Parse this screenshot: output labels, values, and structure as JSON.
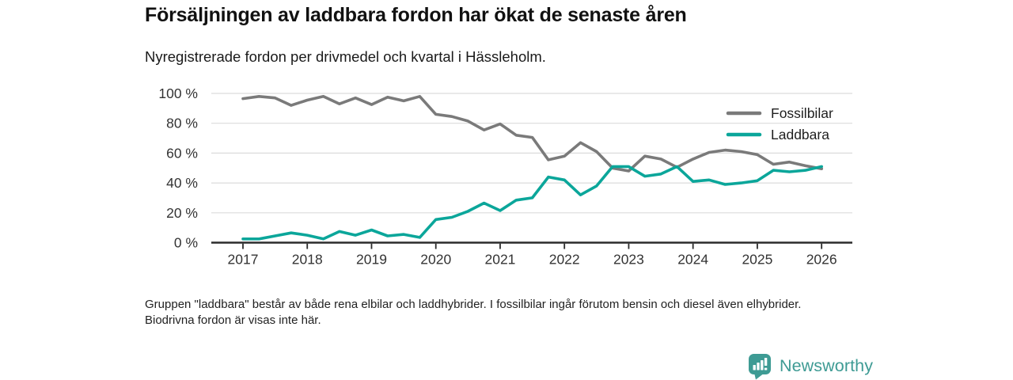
{
  "title": "Försäljningen av laddbara fordon har ökat de senaste åren",
  "subtitle": "Nyregistrerade fordon per drivmedel och kvartal i Hässleholm.",
  "footnote": "Gruppen \"laddbara\" består av både rena elbilar och laddhybrider. I fossilbilar ingår förutom bensin och diesel även elhybrider. Biodrivna fordon är visas inte här.",
  "branding": {
    "logo_text": "Newsworthy",
    "logo_icon": "bar-chart-pin-icon",
    "brand_color": "#3e9b94"
  },
  "palette": {
    "grid": "#dcdcdc",
    "axis": "#2b2b2b",
    "tick_text": "#333333",
    "legend_text": "#1f1f1f"
  },
  "chart_data": {
    "type": "line",
    "title": "Försäljningen av laddbara fordon har ökat de senaste åren",
    "subtitle": "Nyregistrerade fordon per drivmedel och kvartal i Hässleholm.",
    "xlabel": "",
    "ylabel": "",
    "x_unit": "quarter",
    "x_range": [
      "2017 Q1",
      "2026 Q1"
    ],
    "x_tick_labels": [
      "2017",
      "2018",
      "2019",
      "2020",
      "2021",
      "2022",
      "2023",
      "2024",
      "2025",
      "2026"
    ],
    "y_tick_labels": [
      "0 %",
      "20 %",
      "40 %",
      "60 %",
      "80 %",
      "100 %"
    ],
    "ylim": [
      0,
      100
    ],
    "grid": "horizontal",
    "legend_position": "top-right",
    "series": [
      {
        "name": "Fossilbilar",
        "color": "#7a7a7a",
        "values": [
          96.5,
          98,
          97,
          92,
          95.5,
          98,
          93,
          97,
          92.5,
          97.5,
          95,
          98,
          86,
          84.5,
          81.5,
          75.5,
          79.5,
          72,
          70.5,
          55.5,
          58,
          67,
          61,
          50,
          48,
          58,
          56,
          50.5,
          56,
          60.5,
          62,
          61,
          59,
          52.5,
          54,
          51.5,
          49.5
        ]
      },
      {
        "name": "Laddbara",
        "color": "#0ba69a",
        "values": [
          2.5,
          2.5,
          4.5,
          6.5,
          5,
          2.5,
          7.5,
          5,
          8.5,
          4.5,
          5.5,
          3.5,
          15.5,
          17,
          21,
          26.5,
          21.5,
          28.5,
          30,
          44,
          42,
          32,
          38,
          51,
          51,
          44.5,
          46,
          51,
          41,
          42,
          39,
          40,
          41.5,
          48.5,
          47.5,
          48.5,
          51
        ]
      }
    ]
  }
}
